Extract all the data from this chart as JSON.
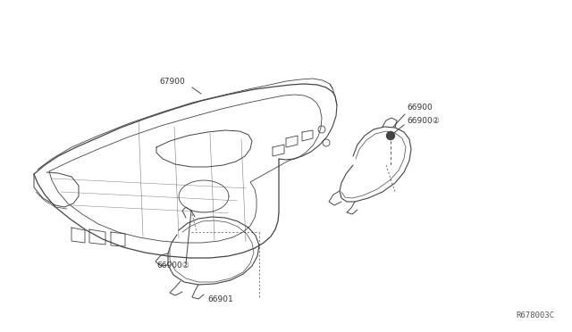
{
  "background_color": "#ffffff",
  "diagram_id": "R678003C",
  "line_color": "#444444",
  "text_color": "#333333",
  "font_size": 6.5,
  "diagram_id_font_size": 6.5
}
